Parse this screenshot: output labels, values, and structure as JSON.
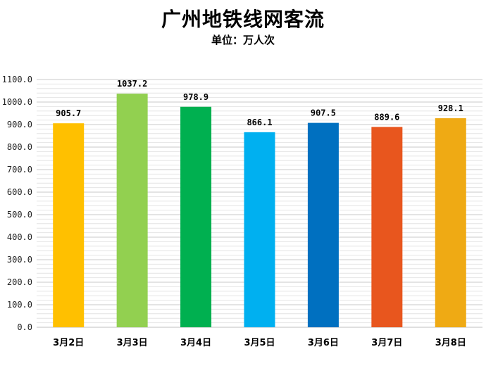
{
  "chart_data": {
    "type": "bar",
    "title": "广州地铁线网客流",
    "subtitle": "单位：万人次",
    "categories": [
      "3月2日",
      "3月3日",
      "3月4日",
      "3月5日",
      "3月6日",
      "3月7日",
      "3月8日"
    ],
    "values": [
      905.7,
      1037.2,
      978.9,
      866.1,
      907.5,
      889.6,
      928.1
    ],
    "value_labels": [
      "905.7",
      "1037.2",
      "978.9",
      "866.1",
      "907.5",
      "889.6",
      "928.1"
    ],
    "bar_colors": [
      "#FFC000",
      "#92D050",
      "#00B050",
      "#00B0F0",
      "#0070C0",
      "#E8561E",
      "#EFAA14"
    ],
    "ylim": [
      0,
      1100
    ],
    "yticks": [
      "0.0",
      "100.0",
      "200.0",
      "300.0",
      "400.0",
      "500.0",
      "600.0",
      "700.0",
      "800.0",
      "900.0",
      "1000.0",
      "1100.0"
    ],
    "grid": true,
    "legend": "none"
  }
}
